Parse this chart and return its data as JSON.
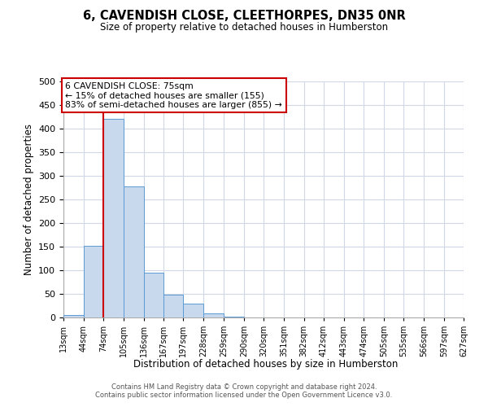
{
  "title": "6, CAVENDISH CLOSE, CLEETHORPES, DN35 0NR",
  "subtitle": "Size of property relative to detached houses in Humberston",
  "xlabel": "Distribution of detached houses by size in Humberston",
  "ylabel": "Number of detached properties",
  "bin_edges": [
    13,
    44,
    74,
    105,
    136,
    167,
    197,
    228,
    259,
    290,
    320,
    351,
    382,
    412,
    443,
    474,
    505,
    535,
    566,
    597,
    627
  ],
  "bin_labels": [
    "13sqm",
    "44sqm",
    "74sqm",
    "105sqm",
    "136sqm",
    "167sqm",
    "197sqm",
    "228sqm",
    "259sqm",
    "290sqm",
    "320sqm",
    "351sqm",
    "382sqm",
    "412sqm",
    "443sqm",
    "474sqm",
    "505sqm",
    "535sqm",
    "566sqm",
    "597sqm",
    "627sqm"
  ],
  "counts": [
    5,
    152,
    420,
    278,
    95,
    48,
    30,
    8,
    2,
    0,
    0,
    0,
    0,
    0,
    0,
    0,
    0,
    0,
    0,
    0
  ],
  "bar_color": "#c8d9ee",
  "bar_edge_color": "#5b9bd5",
  "property_line_x": 74,
  "property_line_color": "#cc0000",
  "ylim": [
    0,
    500
  ],
  "yticks": [
    0,
    50,
    100,
    150,
    200,
    250,
    300,
    350,
    400,
    450,
    500
  ],
  "annotation_line1": "6 CAVENDISH CLOSE: 75sqm",
  "annotation_line2": "← 15% of detached houses are smaller (155)",
  "annotation_line3": "83% of semi-detached houses are larger (855) →",
  "footer_line1": "Contains HM Land Registry data © Crown copyright and database right 2024.",
  "footer_line2": "Contains public sector information licensed under the Open Government Licence v3.0.",
  "background_color": "#ffffff",
  "grid_color": "#d0d8e8"
}
